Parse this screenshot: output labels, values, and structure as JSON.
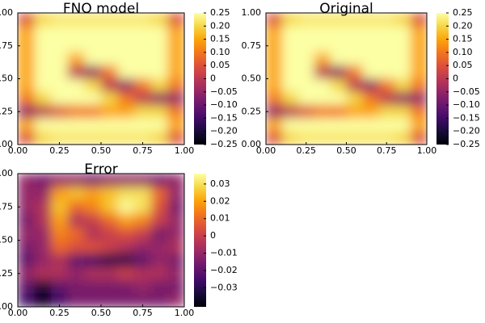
{
  "chart_data": [
    {
      "type": "heatmap",
      "title": "FNO model",
      "colormap": "inferno",
      "xlim": [
        0,
        1
      ],
      "ylim": [
        0,
        1
      ],
      "xticks": [
        {
          "value": 0,
          "label": "0.00"
        },
        0.25,
        {
          "value": 0.5,
          "label": "0.50"
        },
        0.75,
        {
          "value": 1,
          "label": "1.00"
        }
      ],
      "yticks": [
        {
          "value": 0,
          "label": "0.00"
        },
        0.25,
        {
          "value": 0.5,
          "label": "0.50"
        },
        0.75,
        {
          "value": 1,
          "label": "1.00"
        }
      ],
      "clim": [
        -0.25,
        0.25
      ],
      "cticks": [
        0.25,
        {
          "value": 0.2,
          "label": "0.20"
        },
        0.15,
        {
          "value": 0.1,
          "label": "0.10"
        },
        0.05,
        0,
        {
          "value": -0.05,
          "label": "−0.05"
        },
        {
          "value": -0.1,
          "label": "−0.10"
        },
        {
          "value": -0.15,
          "label": "−0.15"
        },
        {
          "value": -0.2,
          "label": "−0.20"
        },
        {
          "value": -0.25,
          "label": "−0.25"
        }
      ],
      "z": [
        [
          0.05,
          0.2,
          0.22,
          0.22,
          0.22,
          0.22,
          0.22,
          0.22,
          0.2,
          0.05
        ],
        [
          0.15,
          0.25,
          0.25,
          0.25,
          0.25,
          0.25,
          0.25,
          0.25,
          0.25,
          0.15
        ],
        [
          0.15,
          0.25,
          0.25,
          0.25,
          0.25,
          0.25,
          0.25,
          0.25,
          0.25,
          0.15
        ],
        [
          0.15,
          0.25,
          0.25,
          0.15,
          0.25,
          0.25,
          0.25,
          0.25,
          0.25,
          0.15
        ],
        [
          0.15,
          0.25,
          0.25,
          0.0,
          -0.05,
          0.1,
          0.25,
          0.25,
          0.25,
          0.15
        ],
        [
          0.15,
          0.25,
          0.25,
          0.25,
          0.2,
          0.0,
          -0.05,
          0.1,
          0.2,
          0.1
        ],
        [
          0.1,
          0.2,
          0.25,
          0.25,
          0.25,
          0.2,
          0.1,
          0.0,
          -0.05,
          -0.05
        ],
        [
          -0.05,
          0.0,
          0.05,
          0.1,
          0.1,
          0.15,
          0.15,
          0.2,
          0.2,
          0.1
        ],
        [
          0.15,
          0.25,
          0.25,
          0.25,
          0.25,
          0.25,
          0.25,
          0.25,
          0.25,
          0.15
        ],
        [
          0.05,
          0.2,
          0.22,
          0.22,
          0.22,
          0.22,
          0.22,
          0.22,
          0.2,
          0.05
        ]
      ]
    },
    {
      "type": "heatmap",
      "title": "Original",
      "colormap": "inferno",
      "xlim": [
        0,
        1
      ],
      "ylim": [
        0,
        1
      ],
      "xticks": [
        {
          "value": 0,
          "label": "0.00"
        },
        0.25,
        {
          "value": 0.5,
          "label": "0.50"
        },
        0.75,
        {
          "value": 1,
          "label": "1.00"
        }
      ],
      "yticks": [
        {
          "value": 0,
          "label": "0.00"
        },
        0.25,
        {
          "value": 0.5,
          "label": "0.50"
        },
        0.75,
        {
          "value": 1,
          "label": "1.00"
        }
      ],
      "clim": [
        -0.25,
        0.25
      ],
      "cticks": [
        0.25,
        {
          "value": 0.2,
          "label": "0.20"
        },
        0.15,
        {
          "value": 0.1,
          "label": "0.10"
        },
        0.05,
        0,
        {
          "value": -0.05,
          "label": "−0.05"
        },
        {
          "value": -0.1,
          "label": "−0.10"
        },
        {
          "value": -0.15,
          "label": "−0.15"
        },
        {
          "value": -0.2,
          "label": "−0.20"
        },
        {
          "value": -0.25,
          "label": "−0.25"
        }
      ],
      "z": [
        [
          0.05,
          0.2,
          0.22,
          0.22,
          0.22,
          0.22,
          0.22,
          0.22,
          0.2,
          0.05
        ],
        [
          0.15,
          0.25,
          0.25,
          0.25,
          0.25,
          0.25,
          0.25,
          0.25,
          0.25,
          0.15
        ],
        [
          0.15,
          0.25,
          0.25,
          0.25,
          0.25,
          0.25,
          0.25,
          0.25,
          0.25,
          0.15
        ],
        [
          0.15,
          0.25,
          0.25,
          0.15,
          0.25,
          0.25,
          0.25,
          0.25,
          0.25,
          0.15
        ],
        [
          0.15,
          0.25,
          0.25,
          0.0,
          -0.05,
          0.1,
          0.25,
          0.25,
          0.25,
          0.15
        ],
        [
          0.15,
          0.25,
          0.25,
          0.25,
          0.2,
          0.0,
          -0.05,
          0.1,
          0.2,
          0.1
        ],
        [
          0.1,
          0.2,
          0.25,
          0.25,
          0.25,
          0.2,
          0.1,
          0.0,
          -0.05,
          -0.05
        ],
        [
          -0.05,
          0.0,
          0.05,
          0.1,
          0.1,
          0.15,
          0.15,
          0.2,
          0.2,
          0.1
        ],
        [
          0.15,
          0.25,
          0.25,
          0.25,
          0.25,
          0.25,
          0.25,
          0.25,
          0.25,
          0.15
        ],
        [
          0.05,
          0.2,
          0.22,
          0.22,
          0.22,
          0.22,
          0.22,
          0.22,
          0.2,
          0.05
        ]
      ]
    },
    {
      "type": "heatmap",
      "title": "Error",
      "colormap": "inferno",
      "xlim": [
        0,
        1
      ],
      "ylim": [
        0,
        1
      ],
      "xticks": [
        {
          "value": 0,
          "label": "0.00"
        },
        0.25,
        {
          "value": 0.5,
          "label": "0.50"
        },
        0.75,
        {
          "value": 1,
          "label": "1.00"
        }
      ],
      "yticks": [
        {
          "value": 0,
          "label": "0.00"
        },
        0.25,
        {
          "value": 0.5,
          "label": "0.50"
        },
        0.75,
        {
          "value": 1,
          "label": "1.00"
        }
      ],
      "clim": [
        -0.041,
        0.036
      ],
      "cticks": [
        0.03,
        0.02,
        0.01,
        0,
        {
          "value": -0.01,
          "label": "−0.01"
        },
        {
          "value": -0.02,
          "label": "−0.02"
        },
        {
          "value": -0.03,
          "label": "−0.03"
        }
      ],
      "z": [
        [
          -0.01,
          -0.015,
          -0.01,
          -0.01,
          -0.015,
          -0.01,
          -0.01,
          -0.01,
          -0.015,
          -0.01
        ],
        [
          -0.01,
          -0.01,
          0.02,
          0.025,
          0.02,
          0.025,
          0.03,
          0.03,
          0.01,
          -0.01
        ],
        [
          -0.01,
          -0.005,
          0.025,
          0.01,
          0.015,
          0.025,
          0.035,
          0.03,
          0.005,
          -0.015
        ],
        [
          -0.015,
          -0.005,
          0.02,
          -0.005,
          0.0,
          0.01,
          0.02,
          0.015,
          0.0,
          -0.01
        ],
        [
          -0.01,
          -0.01,
          0.015,
          0.01,
          -0.005,
          0.0,
          0.005,
          0.0,
          -0.015,
          -0.01
        ],
        [
          -0.015,
          -0.01,
          0.01,
          0.005,
          0.005,
          0.0,
          -0.005,
          -0.01,
          -0.01,
          -0.005
        ],
        [
          -0.02,
          -0.01,
          -0.005,
          -0.02,
          -0.025,
          -0.03,
          -0.03,
          -0.02,
          -0.01,
          -0.015
        ],
        [
          -0.01,
          -0.005,
          -0.005,
          -0.01,
          -0.005,
          -0.005,
          0.0,
          -0.005,
          -0.005,
          -0.01
        ],
        [
          -0.02,
          -0.035,
          -0.02,
          -0.015,
          -0.015,
          -0.015,
          -0.015,
          -0.01,
          -0.015,
          -0.015
        ],
        [
          -0.025,
          -0.04,
          -0.025,
          -0.015,
          -0.015,
          -0.015,
          -0.015,
          -0.015,
          -0.015,
          -0.01
        ]
      ]
    }
  ]
}
